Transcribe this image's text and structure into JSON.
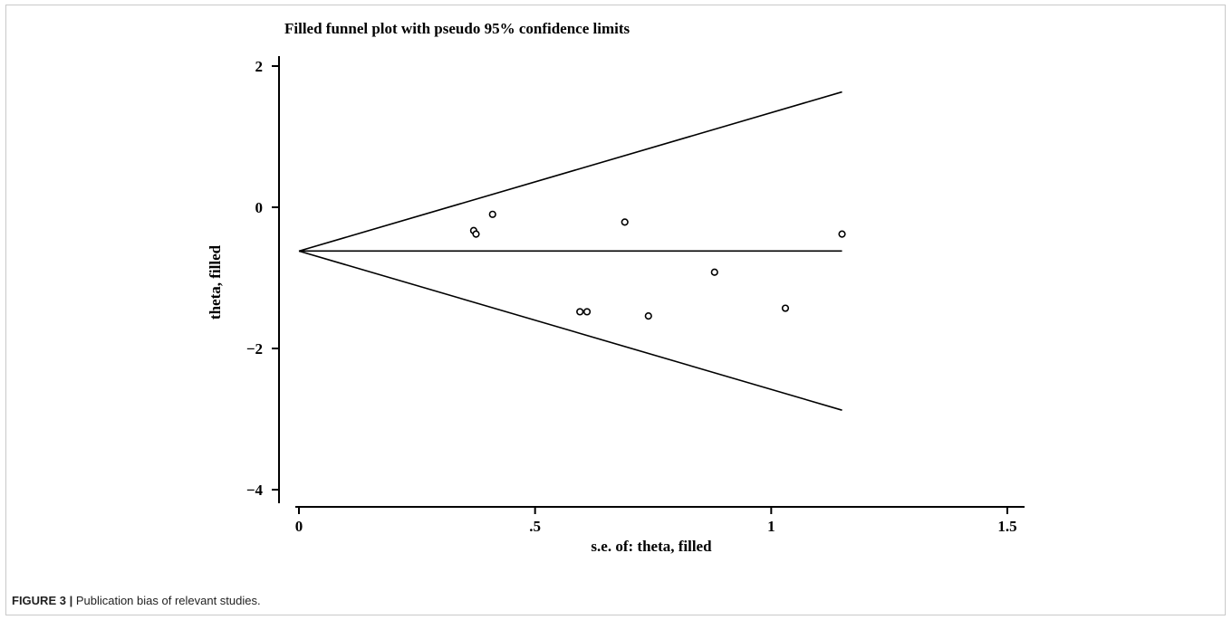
{
  "chart_data": {
    "type": "scatter",
    "title": "Filled funnel plot with pseudo 95% confidence limits",
    "xlabel": "s.e. of: theta, filled",
    "ylabel": "theta, filled",
    "xlim": [
      0,
      1.5
    ],
    "ylim": [
      -4,
      2
    ],
    "x_ticks": [
      0,
      0.5,
      1,
      1.5
    ],
    "x_tick_labels": [
      "0",
      ".5",
      "1",
      "1.5"
    ],
    "y_ticks": [
      -4,
      -2,
      0,
      2
    ],
    "y_tick_labels": [
      "−4",
      "−2",
      "0",
      "2"
    ],
    "grid": false,
    "pooled_estimate": -0.62,
    "funnel_limit_se": 1.15,
    "points": [
      {
        "x": 0.37,
        "y": -0.33
      },
      {
        "x": 0.375,
        "y": -0.38
      },
      {
        "x": 0.41,
        "y": -0.1
      },
      {
        "x": 0.595,
        "y": -1.48
      },
      {
        "x": 0.61,
        "y": -1.48
      },
      {
        "x": 0.69,
        "y": -0.21
      },
      {
        "x": 0.74,
        "y": -1.54
      },
      {
        "x": 0.88,
        "y": -0.92
      },
      {
        "x": 1.03,
        "y": -1.43
      },
      {
        "x": 1.15,
        "y": -0.38
      }
    ]
  },
  "caption": {
    "label": "FIGURE 3 |",
    "text": " Publication bias of relevant studies."
  }
}
